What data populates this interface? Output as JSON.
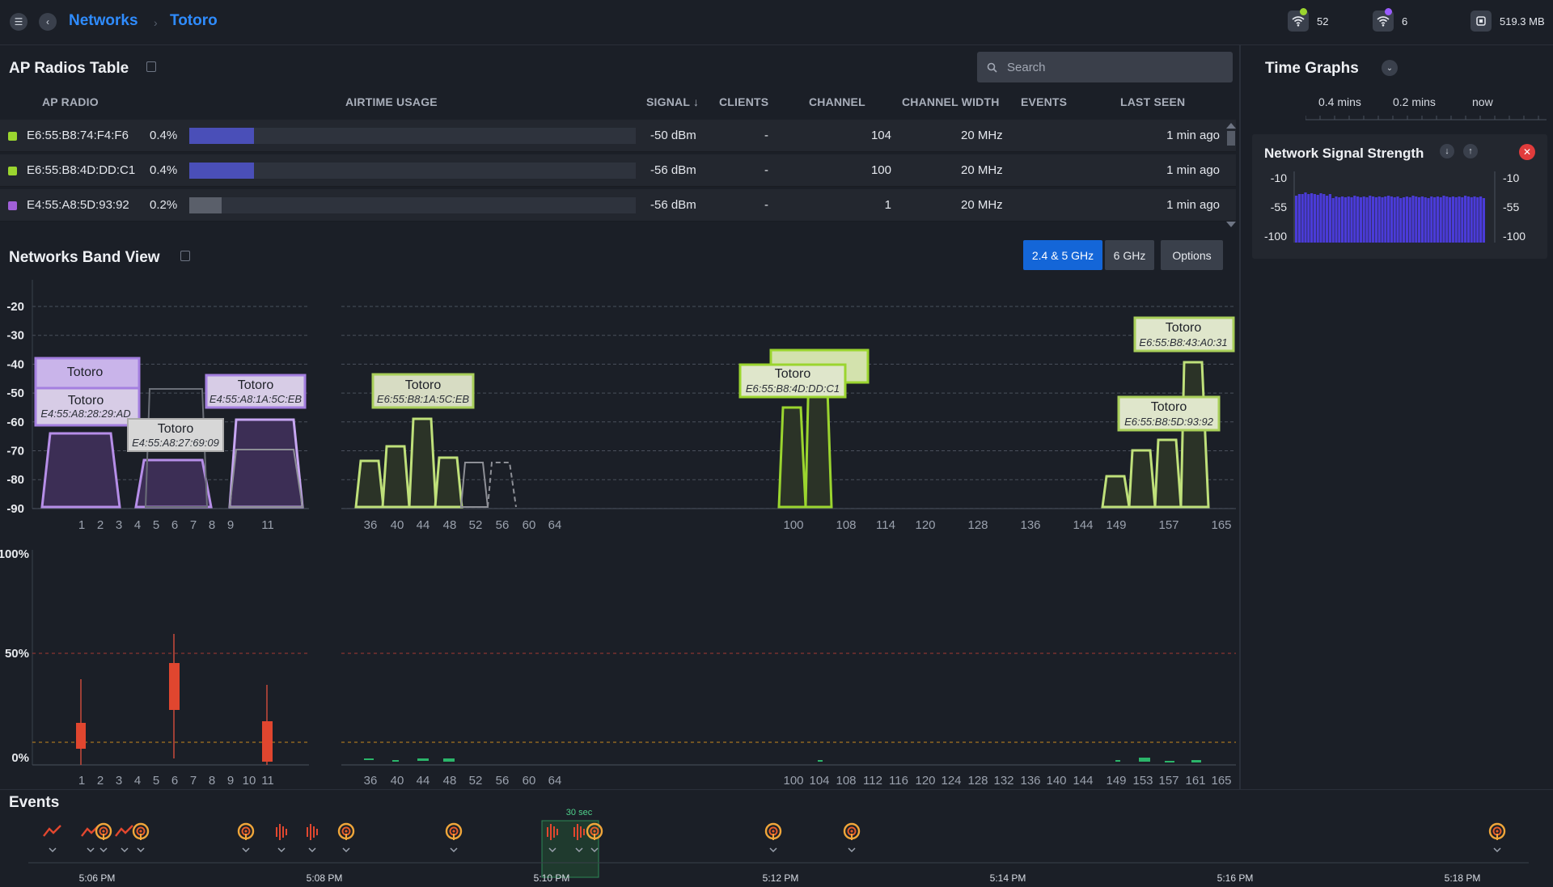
{
  "header": {
    "breadcrumb": [
      "Networks",
      "Totoro"
    ],
    "stats": [
      {
        "icon": "wifi-icon",
        "value": "52",
        "dot_color": "#9bd52f"
      },
      {
        "icon": "wifi-icon",
        "value": "6",
        "dot_color": "#9a5cff"
      },
      {
        "icon": "memory-icon",
        "value": "519.3 MB"
      }
    ]
  },
  "ap_table": {
    "title": "AP Radios Table",
    "search_placeholder": "Search",
    "columns": [
      "AP RADIO",
      "AIRTIME USAGE",
      "SIGNAL",
      "CLIENTS",
      "CHANNEL",
      "CHANNEL WIDTH",
      "EVENTS",
      "LAST SEEN"
    ],
    "sort_indicator": "↓",
    "rows": [
      {
        "radio": "E6:55:B8:74:F4:F6",
        "airtime": "0.4%",
        "airtime_value": 0.004,
        "signal": "-50 dBm",
        "clients": "-",
        "channel": "104",
        "width": "20 MHz",
        "events": "",
        "last_seen": "1 min ago",
        "color": "#9bd52f",
        "bar_color": "#4a4fb8"
      },
      {
        "radio": "E6:55:B8:4D:DD:C1",
        "airtime": "0.4%",
        "airtime_value": 0.004,
        "signal": "-56 dBm",
        "clients": "-",
        "channel": "100",
        "width": "20 MHz",
        "events": "",
        "last_seen": "1 min ago",
        "color": "#9bd52f",
        "bar_color": "#4a4fb8"
      },
      {
        "radio": "E4:55:A8:5D:93:92",
        "airtime": "0.2%",
        "airtime_value": 0.002,
        "signal": "-56 dBm",
        "clients": "-",
        "channel": "1",
        "width": "20 MHz",
        "events": "",
        "last_seen": "1 min ago",
        "color": "#a05fd8",
        "bar_color": "#5a5f6a"
      }
    ]
  },
  "band_view": {
    "title": "Networks Band View",
    "buttons": [
      "2.4 & 5 GHz",
      "6 GHz",
      "Options"
    ],
    "active_button": "2.4 & 5 GHz",
    "y_ticks": [
      "-20",
      "-30",
      "-40",
      "-50",
      "-60",
      "-70",
      "-80",
      "-90"
    ],
    "x_ticks_24": [
      "1",
      "2",
      "3",
      "4",
      "5",
      "6",
      "7",
      "8",
      "9",
      "11"
    ],
    "x_ticks_5": [
      "36",
      "40",
      "44",
      "48",
      "52",
      "56",
      "60",
      "64",
      "100",
      "108",
      "114",
      "120",
      "128",
      "136",
      "144",
      "149",
      "157",
      "165"
    ],
    "labels": [
      {
        "name": "Totoro",
        "mac": "E4:55:A8:28:29:AD"
      },
      {
        "name": "Totoro",
        "mac": "E4:55:A8:1A:5C:EB"
      },
      {
        "name": "Totoro",
        "mac": "E4:55:A8:27:69:09"
      },
      {
        "name": "Totoro",
        "mac": "E6:55:B8:1A:5C:EB"
      },
      {
        "name": "Totoro",
        "mac": "E6:55:B8:4D:DD:C1"
      },
      {
        "name": "Totoro",
        "mac": "E6:55:B8:43:A0:31"
      },
      {
        "name": "Totoro",
        "mac": "E6:55:B8:5D:93:92"
      }
    ],
    "util_y_ticks": [
      "100%",
      "50%",
      "0%"
    ],
    "util_x_ticks_24": [
      "1",
      "2",
      "3",
      "4",
      "5",
      "6",
      "7",
      "8",
      "9",
      "10",
      "11"
    ],
    "util_x_ticks_5": [
      "36",
      "40",
      "44",
      "48",
      "52",
      "56",
      "60",
      "64",
      "100",
      "104",
      "108",
      "112",
      "116",
      "120",
      "124",
      "128",
      "132",
      "136",
      "140",
      "144",
      "149",
      "153",
      "157",
      "161",
      "165"
    ]
  },
  "time_graphs": {
    "title": "Time Graphs",
    "scale": [
      "0.4 mins",
      "0.2 mins",
      "now"
    ],
    "card_title": "Network Signal Strength",
    "y_ticks": [
      "-10",
      "-55",
      "-100"
    ]
  },
  "events": {
    "title": "Events",
    "window_label": "30 sec",
    "times": [
      "5:06 PM",
      "5:08 PM",
      "5:10 PM",
      "5:12 PM",
      "5:14 PM",
      "5:16 PM",
      "5:18 PM"
    ]
  }
}
